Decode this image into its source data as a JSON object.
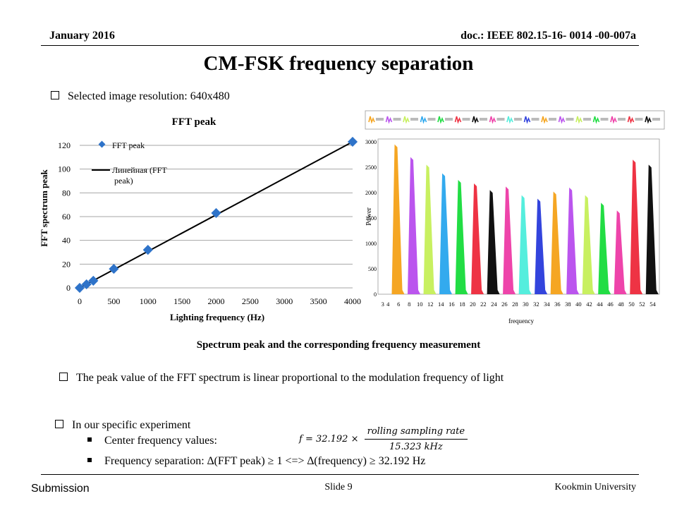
{
  "header": {
    "date": "January 2016",
    "doc": "doc.: IEEE 802.15-16- 0014 -00-007a"
  },
  "title": "CM-FSK frequency separation",
  "bullets": {
    "resolution": "Selected image resolution: 640x480",
    "linear": "The peak value of the FFT spectrum is linear proportional to the modulation frequency of light",
    "experiment": "In our specific experiment",
    "center": "Center frequency values:",
    "separation": "Frequency separation: ∆(FFT peak) ≥ 1  <=> ∆(frequency) ≥ 32.192 Hz"
  },
  "formula": {
    "lhs": "f = 32.192 ×",
    "numerator": "rolling sampling rate",
    "denominator": "15.323 kHz"
  },
  "caption": "Spectrum peak and the corresponding frequency measurement",
  "chart_data": [
    {
      "type": "scatter",
      "title": "FFT peak",
      "xlabel": "Lighting frequency (Hz)",
      "ylabel": "FFT spectrum peak",
      "xlim": [
        0,
        4000
      ],
      "ylim": [
        0,
        120
      ],
      "xticks": [
        0,
        500,
        1000,
        1500,
        2000,
        2500,
        3000,
        3500,
        4000
      ],
      "yticks": [
        0,
        20,
        40,
        60,
        80,
        100,
        120
      ],
      "grid": "horizontal",
      "legend_placement": "top-left",
      "series": [
        {
          "name": "FFT peak",
          "color": "#2e73c9",
          "x": [
            0,
            100,
            200,
            500,
            1000,
            2000,
            4000
          ],
          "y": [
            0,
            3,
            6,
            16,
            32,
            63,
            123
          ]
        },
        {
          "name": "Линейная (FFT peak)",
          "color": "#000000",
          "kind": "trendline",
          "x": [
            0,
            4000
          ],
          "y": [
            0,
            123
          ]
        }
      ]
    },
    {
      "type": "area",
      "ylabel": "Power",
      "xlabel": "frequency",
      "ylim": [
        0,
        3000
      ],
      "yticks": [
        0,
        500,
        1000,
        1500,
        2000,
        2500,
        3000
      ],
      "xticks": [
        3,
        4,
        6,
        8,
        10,
        12,
        14,
        16,
        18,
        20,
        22,
        24,
        26,
        28,
        30,
        32,
        34,
        36,
        38,
        40,
        42,
        44,
        46,
        48,
        50,
        52,
        54
      ],
      "xlim": [
        2.5,
        55
      ],
      "legend_placement": "top",
      "peaks": [
        {
          "x": 5.5,
          "power": 2950,
          "color": "#f5a623"
        },
        {
          "x": 8.5,
          "power": 2700,
          "color": "#bb55ee"
        },
        {
          "x": 11.5,
          "power": 2550,
          "color": "#c8f060"
        },
        {
          "x": 14.5,
          "power": 2380,
          "color": "#33aaee"
        },
        {
          "x": 17.5,
          "power": 2250,
          "color": "#22dd44"
        },
        {
          "x": 20.5,
          "power": 2180,
          "color": "#ee3344"
        },
        {
          "x": 23.5,
          "power": 2050,
          "color": "#111111"
        },
        {
          "x": 26.5,
          "power": 2120,
          "color": "#ee44aa"
        },
        {
          "x": 29.5,
          "power": 1950,
          "color": "#55eedd"
        },
        {
          "x": 32.5,
          "power": 1880,
          "color": "#3344dd"
        },
        {
          "x": 35.5,
          "power": 2020,
          "color": "#f5a623"
        },
        {
          "x": 38.5,
          "power": 2100,
          "color": "#bb55ee"
        },
        {
          "x": 41.5,
          "power": 1950,
          "color": "#c8f060"
        },
        {
          "x": 44.5,
          "power": 1800,
          "color": "#22dd44"
        },
        {
          "x": 47.5,
          "power": 1650,
          "color": "#ee44aa"
        },
        {
          "x": 50.5,
          "power": 2650,
          "color": "#ee3344"
        },
        {
          "x": 53.5,
          "power": 2550,
          "color": "#111111"
        }
      ]
    }
  ],
  "footer": {
    "submission": "Submission",
    "slide": "Slide 9",
    "university": "Kookmin University"
  }
}
